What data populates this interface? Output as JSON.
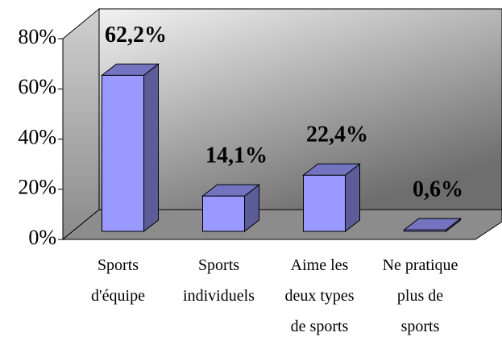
{
  "chart_data": {
    "type": "bar3d",
    "categories": [
      "Sports\nd'équipe",
      "Sports\nindividuels",
      "Aime les\ndeux types\nde sports",
      "Ne pratique\nplus de\nsports"
    ],
    "values": [
      62.2,
      14.1,
      22.4,
      0.6
    ],
    "value_labels": [
      "62,2%",
      "14,1%",
      "22,4%",
      "0,6%"
    ],
    "color": "#9999ff",
    "ylim": [
      0,
      80
    ],
    "yticks": [
      {
        "value": 0,
        "label": "0%"
      },
      {
        "value": 20,
        "label": "20%"
      },
      {
        "value": 40,
        "label": "40%"
      },
      {
        "value": 60,
        "label": "60%"
      },
      {
        "value": 80,
        "label": "80%"
      }
    ],
    "grid": false
  }
}
